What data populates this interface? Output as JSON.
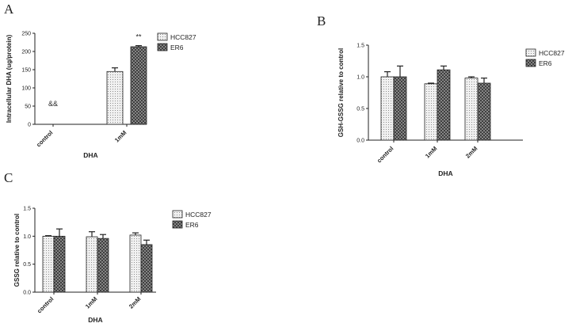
{
  "chart_data": [
    {
      "panel": "A",
      "type": "bar",
      "categories": [
        "control",
        "1mM"
      ],
      "series": [
        {
          "name": "HCC827",
          "values": [
            0,
            145
          ],
          "errors": [
            0,
            10
          ],
          "pattern": "dots"
        },
        {
          "name": "ER6",
          "values": [
            0,
            213
          ],
          "errors": [
            0,
            3
          ],
          "pattern": "check"
        }
      ],
      "xlabel": "DHA",
      "ylabel": "Intracellular DHA (ug/protein)",
      "ylim": [
        0,
        250
      ],
      "yticks": [
        "0",
        "50",
        "100",
        "150",
        "200",
        "250"
      ],
      "annotations": [
        {
          "text": "&&",
          "category": "control"
        },
        {
          "text": "**",
          "category": "1mM",
          "series": "ER6"
        }
      ],
      "legend": "top-right",
      "grid": false
    },
    {
      "panel": "B",
      "type": "bar",
      "categories": [
        "control",
        "1mM",
        "2mM"
      ],
      "series": [
        {
          "name": "HCC827",
          "values": [
            1.0,
            0.89,
            0.98
          ],
          "errors": [
            0.08,
            0.01,
            0.02
          ],
          "pattern": "dots"
        },
        {
          "name": "ER6",
          "values": [
            1.0,
            1.11,
            0.9
          ],
          "errors": [
            0.17,
            0.06,
            0.08
          ],
          "pattern": "check"
        }
      ],
      "xlabel": "DHA",
      "ylabel": "GSH-GSSG relative to control",
      "ylim": [
        0,
        1.5
      ],
      "yticks": [
        "0.0",
        "0.5",
        "1.0",
        "1.5"
      ],
      "legend": "top-right",
      "grid": false
    },
    {
      "panel": "C",
      "type": "bar",
      "categories": [
        "control",
        "1mM",
        "2mM"
      ],
      "series": [
        {
          "name": "HCC827",
          "values": [
            1.0,
            0.99,
            1.02
          ],
          "errors": [
            0.01,
            0.09,
            0.04
          ],
          "pattern": "dots"
        },
        {
          "name": "ER6",
          "values": [
            1.0,
            0.96,
            0.85
          ],
          "errors": [
            0.13,
            0.07,
            0.08
          ],
          "pattern": "check"
        }
      ],
      "xlabel": "DHA",
      "ylabel": "GSSG relative to control",
      "ylim": [
        0,
        1.5
      ],
      "yticks": [
        "0.0",
        "0.5",
        "1.0",
        "1.5"
      ],
      "legend": "top-right",
      "grid": false
    }
  ]
}
